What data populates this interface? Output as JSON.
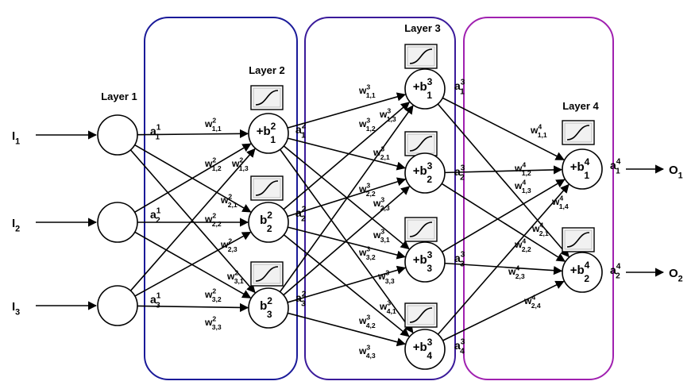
{
  "layers": [
    {
      "label": "Layer 1",
      "color": "#000000"
    },
    {
      "label": "Layer 2",
      "color": "#1a1a99"
    },
    {
      "label": "Layer 3",
      "color": "#3a1a9a"
    },
    {
      "label": "Layer 4",
      "color": "#a020b0"
    }
  ],
  "inputs": [
    {
      "base": "I",
      "sub": "1"
    },
    {
      "base": "I",
      "sub": "2"
    },
    {
      "base": "I",
      "sub": "3"
    }
  ],
  "outputs": [
    {
      "base": "O",
      "sub": "1"
    },
    {
      "base": "O",
      "sub": "2"
    }
  ],
  "layer2_nodes": [
    {
      "prefix": "+b",
      "sup": "2",
      "sub": "1"
    },
    {
      "prefix": "b",
      "sup": "2",
      "sub": "2"
    },
    {
      "prefix": "b",
      "sup": "2",
      "sub": "3"
    }
  ],
  "layer3_nodes": [
    {
      "prefix": "+b",
      "sup": "3",
      "sub": "1"
    },
    {
      "prefix": "+b",
      "sup": "3",
      "sub": "2"
    },
    {
      "prefix": "+b",
      "sup": "3",
      "sub": "3"
    },
    {
      "prefix": "+b",
      "sup": "3",
      "sub": "4"
    }
  ],
  "layer4_nodes": [
    {
      "prefix": "+b",
      "sup": "4",
      "sub": "1"
    },
    {
      "prefix": "+b",
      "sup": "4",
      "sub": "2"
    }
  ],
  "activations": [
    {
      "sup": "1",
      "sub": "1"
    },
    {
      "sup": "1",
      "sub": "2"
    },
    {
      "sup": "1",
      "sub": "3"
    },
    {
      "sup": "2",
      "sub": "1"
    },
    {
      "sup": "2",
      "sub": "2"
    },
    {
      "sup": "2",
      "sub": "3"
    },
    {
      "sup": "3",
      "sub": "1"
    },
    {
      "sup": "3",
      "sub": "2"
    },
    {
      "sup": "3",
      "sub": "3"
    },
    {
      "sup": "3",
      "sub": "4"
    },
    {
      "sup": "4",
      "sub": "1"
    },
    {
      "sup": "4",
      "sub": "2"
    }
  ],
  "weights": [
    {
      "sup": "2",
      "sub": "1,1"
    },
    {
      "sup": "2",
      "sub": "1,2"
    },
    {
      "sup": "2",
      "sub": "1,3"
    },
    {
      "sup": "2",
      "sub": "2,1"
    },
    {
      "sup": "2",
      "sub": "2,2"
    },
    {
      "sup": "2",
      "sub": "2,3"
    },
    {
      "sup": "2",
      "sub": "3,1"
    },
    {
      "sup": "2",
      "sub": "3,2"
    },
    {
      "sup": "2",
      "sub": "3,3"
    },
    {
      "sup": "3",
      "sub": "1,1"
    },
    {
      "sup": "3",
      "sub": "1,2"
    },
    {
      "sup": "3",
      "sub": "1,3"
    },
    {
      "sup": "3",
      "sub": "2,1"
    },
    {
      "sup": "3",
      "sub": "2,2"
    },
    {
      "sup": "3",
      "sub": "2,3"
    },
    {
      "sup": "3",
      "sub": "3,1"
    },
    {
      "sup": "3",
      "sub": "3,2"
    },
    {
      "sup": "3",
      "sub": "3,3"
    },
    {
      "sup": "3",
      "sub": "4,1"
    },
    {
      "sup": "3",
      "sub": "4,2"
    },
    {
      "sup": "3",
      "sub": "4,3"
    },
    {
      "sup": "4",
      "sub": "1,1"
    },
    {
      "sup": "4",
      "sub": "1,2"
    },
    {
      "sup": "4",
      "sub": "1,3"
    },
    {
      "sup": "4",
      "sub": "1,4"
    },
    {
      "sup": "4",
      "sub": "2,1"
    },
    {
      "sup": "4",
      "sub": "2,2"
    },
    {
      "sup": "4",
      "sub": "2,3"
    },
    {
      "sup": "4",
      "sub": "2,4"
    }
  ],
  "weight_symbol": "w",
  "activation_symbol": "a"
}
